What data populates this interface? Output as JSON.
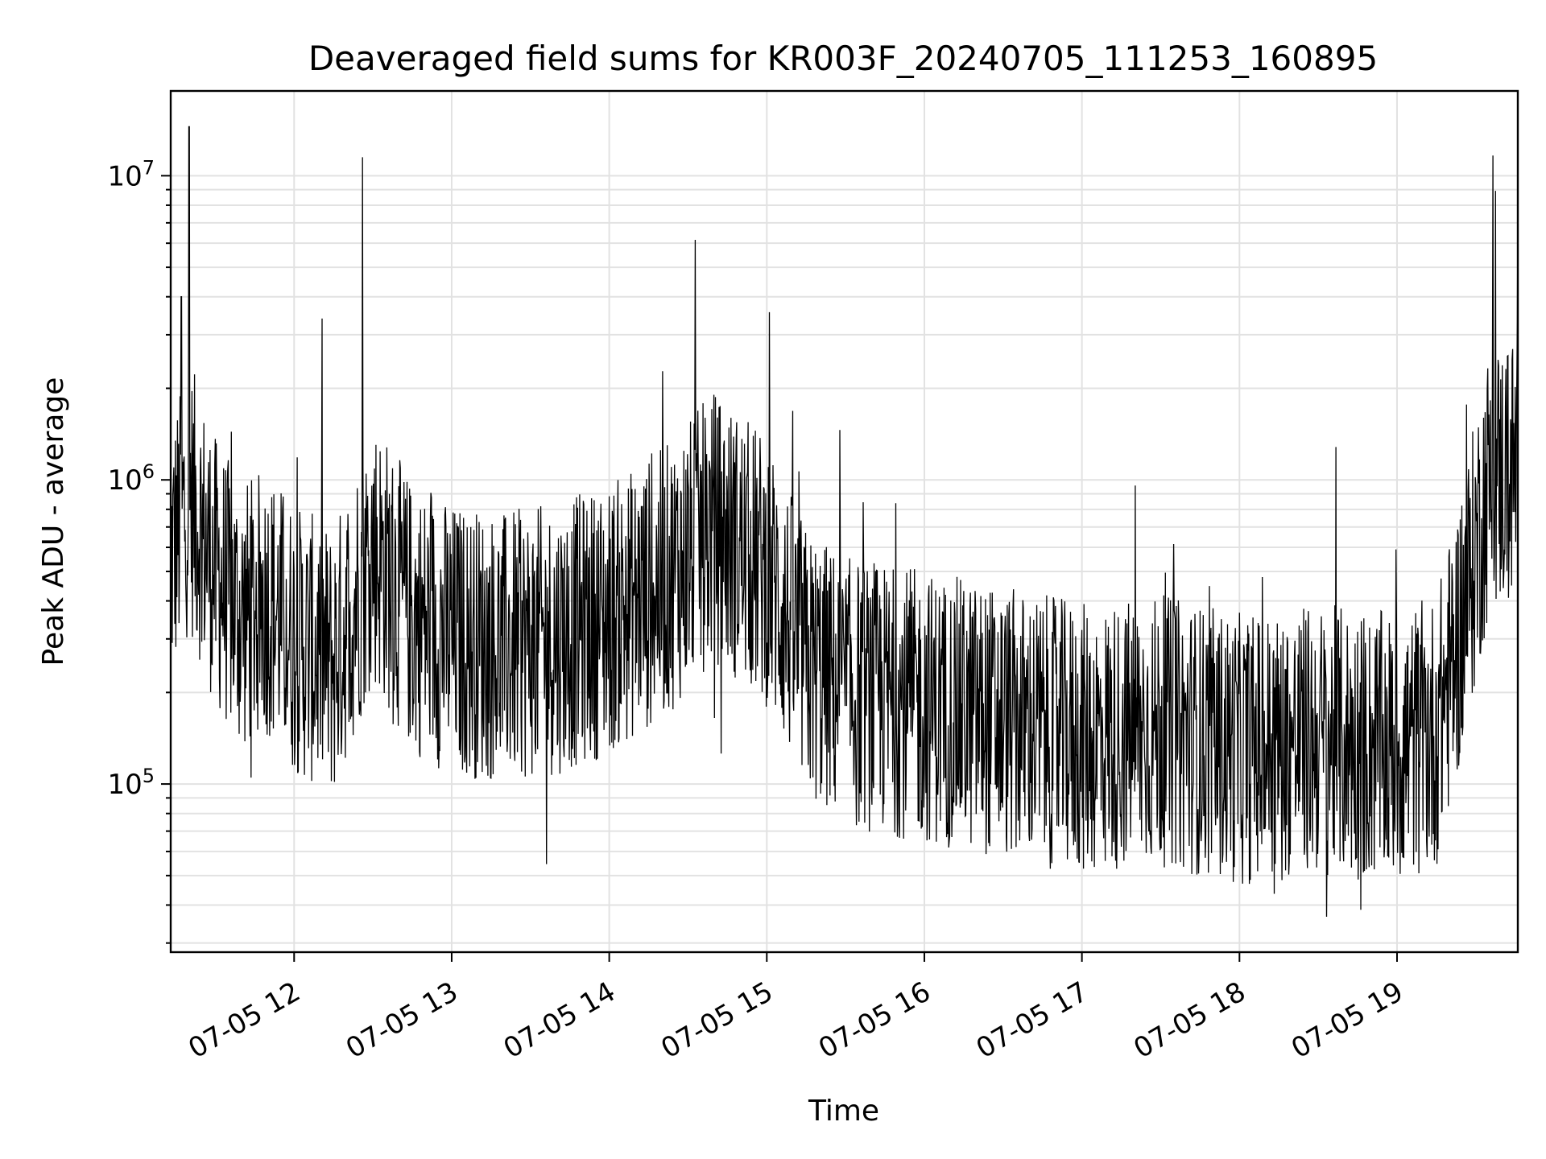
{
  "chart_data": {
    "type": "line",
    "title": "Deaveraged field sums for KR003F_20240705_111253_160895",
    "xlabel": "Time",
    "ylabel": "Peak ADU - average",
    "yscale": "log",
    "ylim": [
      28000,
      19000000
    ],
    "xlim": [
      "2024-07-05 11:13",
      "2024-07-05 19:46"
    ],
    "grid": true,
    "x_ticks": [
      "07-05 12",
      "07-05 13",
      "07-05 14",
      "07-05 15",
      "07-05 16",
      "07-05 17",
      "07-05 18",
      "07-05 19"
    ],
    "y_ticks": [
      100000,
      1000000,
      10000000
    ],
    "y_tick_labels": [
      {
        "base": "10",
        "exp": "5"
      },
      {
        "base": "10",
        "exp": "6"
      },
      {
        "base": "10",
        "exp": "7"
      }
    ],
    "series": [
      {
        "x": [
          "2024-07-05 11:13",
          "2024-07-05 11:20",
          "2024-07-05 11:30",
          "2024-07-05 11:40",
          "2024-07-05 11:50",
          "2024-07-05 12:00",
          "2024-07-05 12:15",
          "2024-07-05 12:30",
          "2024-07-05 12:45",
          "2024-07-05 13:00",
          "2024-07-05 13:20",
          "2024-07-05 13:40",
          "2024-07-05 14:00",
          "2024-07-05 14:20",
          "2024-07-05 14:40",
          "2024-07-05 15:00",
          "2024-07-05 15:15",
          "2024-07-05 15:30",
          "2024-07-05 16:00",
          "2024-07-05 16:30",
          "2024-07-05 17:00",
          "2024-07-05 17:30",
          "2024-07-05 18:00",
          "2024-07-05 18:30",
          "2024-07-05 19:00",
          "2024-07-05 19:15",
          "2024-07-05 19:25",
          "2024-07-05 19:35",
          "2024-07-05 19:46"
        ],
        "values": [
          550000,
          900000,
          500000,
          350000,
          400000,
          300000,
          250000,
          600000,
          350000,
          300000,
          280000,
          300000,
          350000,
          450000,
          700000,
          500000,
          250000,
          200000,
          180000,
          160000,
          140000,
          150000,
          130000,
          140000,
          130000,
          150000,
          350000,
          1000000,
          1100000
        ]
      }
    ],
    "spikes": [
      {
        "x": "2024-07-05 11:20",
        "value": 14500000
      },
      {
        "x": "2024-07-05 12:26",
        "value": 11500000
      },
      {
        "x": "2024-07-05 11:17",
        "value": 4000000
      },
      {
        "x": "2024-07-05 19:46",
        "value": 8000000
      }
    ]
  }
}
